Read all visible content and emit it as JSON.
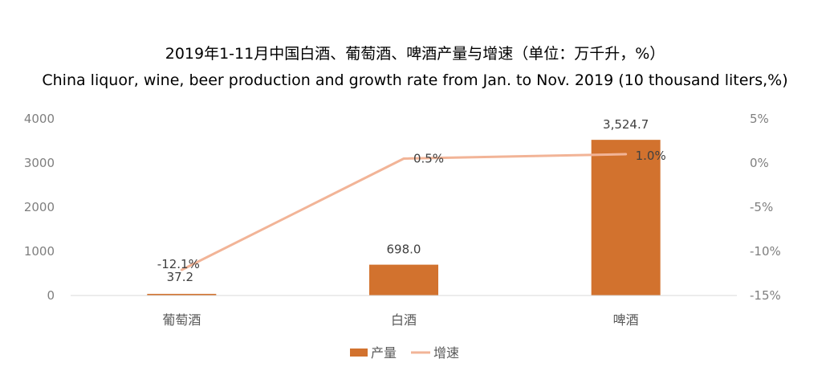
{
  "chart_data": {
    "type": "bar",
    "title": "2019年1-11月中国白酒、葡萄酒、啤酒产量与增速（单位：万千升，%）",
    "subtitle": "China liquor, wine, beer production and growth rate from Jan. to Nov. 2019 (10 thousand liters,%)",
    "categories": [
      "葡萄酒",
      "白酒",
      "啤酒"
    ],
    "series": [
      {
        "name": "产量",
        "type": "bar",
        "axis": "left",
        "values": [
          37.2,
          698.0,
          3524.7
        ],
        "labels": [
          "37.2",
          "698.0",
          "3,524.7"
        ]
      },
      {
        "name": "增速",
        "type": "line",
        "axis": "right",
        "values": [
          -12.1,
          0.5,
          1.0
        ],
        "labels": [
          "-12.1%",
          "0.5%",
          "1.0%"
        ]
      }
    ],
    "ylim": [
      0,
      4000
    ],
    "y_ticks": [
      "0",
      "1000",
      "2000",
      "3000",
      "4000"
    ],
    "y2lim": [
      -15,
      5
    ],
    "y2_ticks": [
      "-15%",
      "-10%",
      "-5%",
      "0%",
      "5%"
    ],
    "legend_position": "bottom",
    "grid": false,
    "colors": {
      "bar": "#d2722e",
      "line": "#f2b497",
      "axis": "#d9d9d9"
    }
  }
}
